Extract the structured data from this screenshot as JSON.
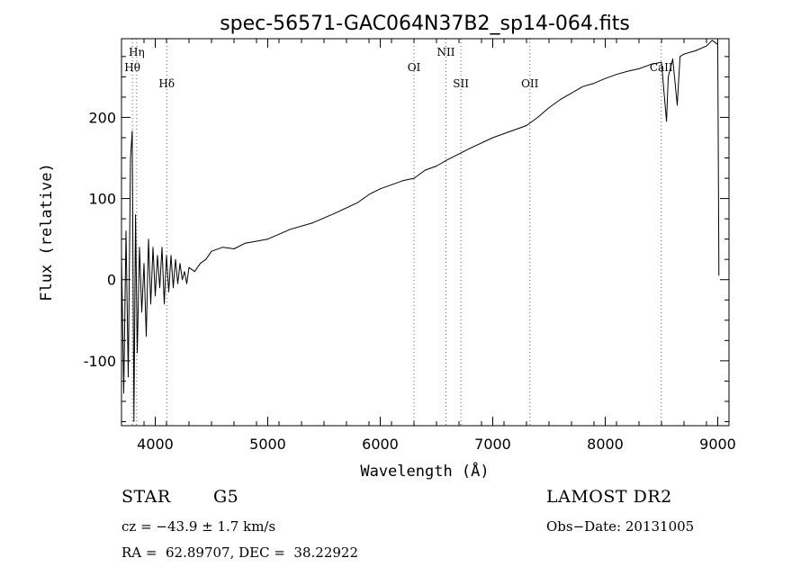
{
  "chart_data": {
    "type": "line",
    "title": "spec-56571-GAC064N37B2_sp14-064.fits",
    "xlabel": "Wavelength (Å)",
    "ylabel": "Flux (relative)",
    "xlim": [
      3700,
      9100
    ],
    "ylim": [
      -180,
      297
    ],
    "xticks": [
      4000,
      5000,
      6000,
      7000,
      8000,
      9000
    ],
    "yticks": [
      -100,
      0,
      100,
      200
    ],
    "grid": false,
    "line_color": "#000000",
    "marker_color": "#c0392b",
    "series": [
      {
        "values": [
          [
            3700,
            30
          ],
          [
            3720,
            -140
          ],
          [
            3740,
            60
          ],
          [
            3760,
            -120
          ],
          [
            3780,
            150
          ],
          [
            3795,
            183
          ],
          [
            3810,
            -175
          ],
          [
            3825,
            80
          ],
          [
            3840,
            -90
          ],
          [
            3860,
            40
          ],
          [
            3880,
            -40
          ],
          [
            3900,
            20
          ],
          [
            3920,
            -70
          ],
          [
            3940,
            50
          ],
          [
            3960,
            -30
          ],
          [
            3980,
            40
          ],
          [
            4000,
            -20
          ],
          [
            4020,
            30
          ],
          [
            4040,
            -10
          ],
          [
            4060,
            40
          ],
          [
            4080,
            -30
          ],
          [
            4100,
            30
          ],
          [
            4120,
            -15
          ],
          [
            4140,
            30
          ],
          [
            4160,
            -10
          ],
          [
            4180,
            25
          ],
          [
            4200,
            -5
          ],
          [
            4220,
            20
          ],
          [
            4240,
            0
          ],
          [
            4260,
            10
          ],
          [
            4280,
            -5
          ],
          [
            4300,
            15
          ],
          [
            4350,
            10
          ],
          [
            4400,
            20
          ],
          [
            4450,
            25
          ],
          [
            4500,
            35
          ],
          [
            4600,
            40
          ],
          [
            4700,
            38
          ],
          [
            4800,
            45
          ],
          [
            5000,
            50
          ],
          [
            5200,
            62
          ],
          [
            5400,
            70
          ],
          [
            5600,
            82
          ],
          [
            5800,
            95
          ],
          [
            5900,
            105
          ],
          [
            6000,
            112
          ],
          [
            6200,
            122
          ],
          [
            6300,
            125
          ],
          [
            6400,
            135
          ],
          [
            6500,
            140
          ],
          [
            6600,
            148
          ],
          [
            6800,
            162
          ],
          [
            7000,
            175
          ],
          [
            7200,
            185
          ],
          [
            7300,
            190
          ],
          [
            7400,
            200
          ],
          [
            7500,
            212
          ],
          [
            7600,
            222
          ],
          [
            7700,
            230
          ],
          [
            7800,
            238
          ],
          [
            7900,
            242
          ],
          [
            8000,
            248
          ],
          [
            8100,
            253
          ],
          [
            8200,
            257
          ],
          [
            8300,
            260
          ],
          [
            8400,
            265
          ],
          [
            8500,
            268
          ],
          [
            8520,
            235
          ],
          [
            8545,
            195
          ],
          [
            8560,
            250
          ],
          [
            8600,
            272
          ],
          [
            8640,
            215
          ],
          [
            8665,
            275
          ],
          [
            8700,
            278
          ],
          [
            8800,
            282
          ],
          [
            8900,
            288
          ],
          [
            8950,
            295
          ],
          [
            9000,
            290
          ],
          [
            9010,
            5
          ]
        ]
      }
    ],
    "absorption_lines": [
      {
        "label": "Hη",
        "x": 3835,
        "row": 0
      },
      {
        "label": "Hθ",
        "x": 3797,
        "row": 1
      },
      {
        "label": "Hδ",
        "x": 4102,
        "row": 2
      },
      {
        "label": "OI",
        "x": 6300,
        "row": 1
      },
      {
        "label": "NII",
        "x": 6584,
        "row": 0
      },
      {
        "label": "SII",
        "x": 6717,
        "row": 2
      },
      {
        "label": "OII",
        "x": 7330,
        "row": 2
      },
      {
        "label": "CaII",
        "x": 8498,
        "row": 1
      }
    ]
  },
  "footer": {
    "object_class": "STAR",
    "subclass": "G5",
    "survey": "LAMOST DR2",
    "velocity": "cz = −43.9 ± 1.7 km/s",
    "obs_date": "Obs−Date: 20131005",
    "coords": "RA =  62.89707, DEC =  38.22922"
  }
}
